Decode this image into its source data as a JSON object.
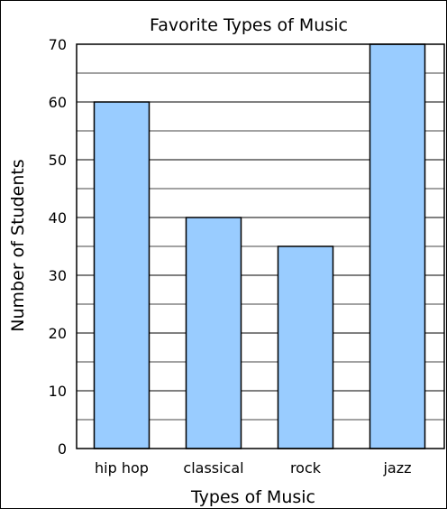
{
  "chart_data": {
    "type": "bar",
    "title": "Favorite Types of Music",
    "xlabel": "Types of Music",
    "ylabel": "Number of Students",
    "categories": [
      "hip hop",
      "classical",
      "rock",
      "jazz"
    ],
    "values": [
      60,
      40,
      35,
      70
    ],
    "ylim": [
      0,
      70
    ],
    "yticks": [
      0,
      10,
      20,
      30,
      40,
      50,
      60,
      70
    ],
    "minor_gridline_step": 5,
    "grid": true,
    "bar_color": "#99ccff",
    "bar_edge_color": "#000000"
  }
}
